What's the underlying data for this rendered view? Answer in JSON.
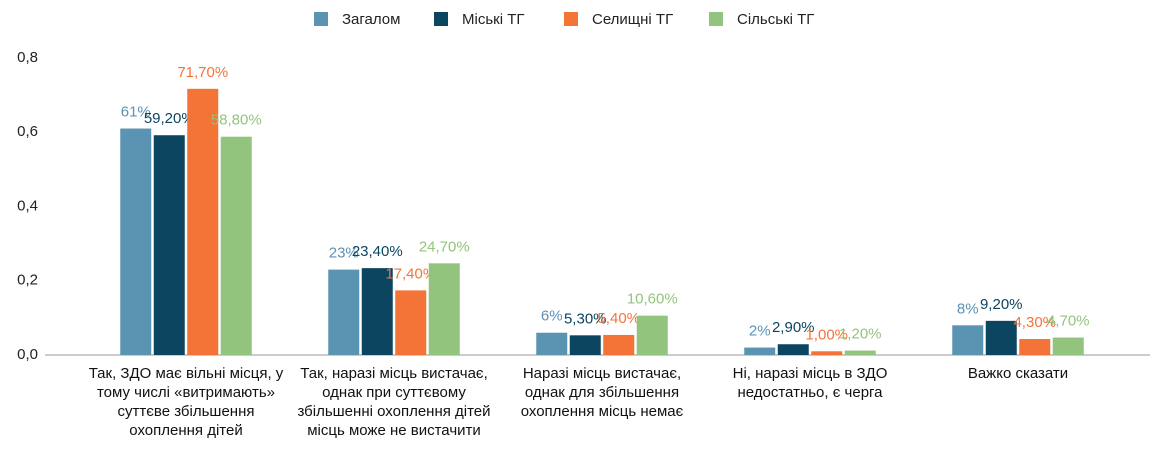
{
  "chart_data": {
    "type": "bar",
    "categories": [
      "Так, ЗДО має вільні місця, у тому числі «витримають» суттєве збільшення охоплення дітей",
      "Так, наразі місць вистачає, однак при суттєвому збільшенні охоплення дітей місць може не вистачити",
      "Наразі місць вистачає, однак для збільшення охоплення місць немає",
      "Ні, наразі місць в ЗДО недостатньо, є черга",
      "Важко сказати"
    ],
    "series": [
      {
        "name": "Загалом",
        "color": "#5b93b3",
        "values": [
          0.61,
          0.23,
          0.06,
          0.02,
          0.08
        ],
        "value_labels": [
          "61%",
          "23%",
          "6%",
          "2%",
          "8%"
        ]
      },
      {
        "name": "Міські ТГ",
        "color": "#0b4560",
        "values": [
          0.592,
          0.234,
          0.053,
          0.029,
          0.092
        ],
        "value_labels": [
          "59,20%",
          "23,40%",
          "5,30%",
          "2,90%",
          "9,20%"
        ]
      },
      {
        "name": "Селищні ТГ",
        "color": "#f47337",
        "values": [
          0.717,
          0.174,
          0.054,
          0.01,
          0.043
        ],
        "value_labels": [
          "71,70%",
          "17,40%",
          "5,40%",
          "1,00%",
          "4,30%"
        ]
      },
      {
        "name": "Сільські ТГ",
        "color": "#93c47d",
        "values": [
          0.588,
          0.247,
          0.106,
          0.012,
          0.047
        ],
        "value_labels": [
          "58,80%",
          "24,70%",
          "10,60%",
          "1,20%",
          "4,70%"
        ]
      }
    ],
    "ylim": [
      0,
      0.8
    ],
    "yticks": [
      {
        "value": 0,
        "label": "0,0"
      },
      {
        "value": 0.2,
        "label": "0,2"
      },
      {
        "value": 0.4,
        "label": "0,4"
      },
      {
        "value": 0.6,
        "label": "0,6"
      },
      {
        "value": 0.8,
        "label": "0,8"
      }
    ],
    "grid": false,
    "legend": "top"
  }
}
